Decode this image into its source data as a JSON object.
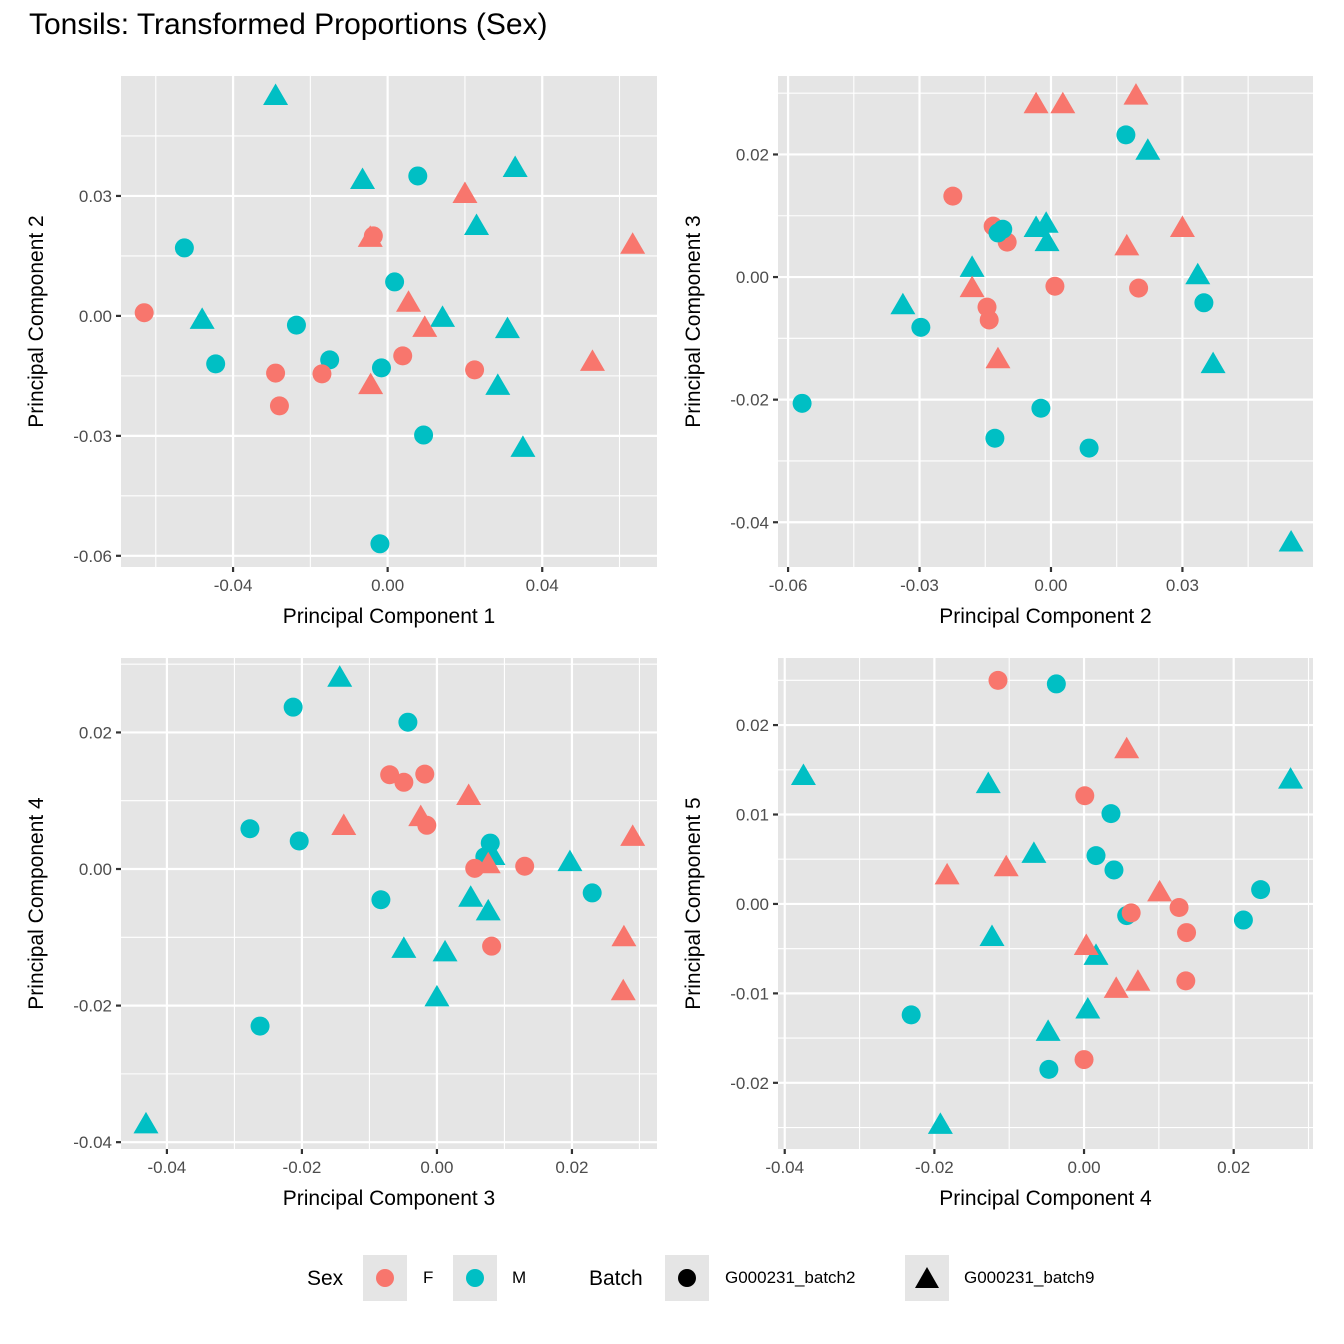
{
  "title": "Tonsils: Transformed Proportions (Sex)",
  "colors": {
    "F": "#F8766D",
    "M": "#00BFC4",
    "panel_bg": "#E5E5E5",
    "grid": "#FFFFFF"
  },
  "legend": {
    "sex_title": "Sex",
    "sex_items": [
      {
        "label": "F",
        "color": "#F8766D"
      },
      {
        "label": "M",
        "color": "#00BFC4"
      }
    ],
    "batch_title": "Batch",
    "batch_items": [
      {
        "label": "G000231_batch2",
        "shape": "circle"
      },
      {
        "label": "G000231_batch9",
        "shape": "triangle"
      }
    ]
  },
  "chart_data": [
    {
      "type": "scatter",
      "xlabel": "Principal Component 1",
      "ylabel": "Principal Component 2",
      "xlim": [
        -0.069,
        0.0697
      ],
      "ylim": [
        -0.0628,
        0.06
      ],
      "xticks": [
        -0.04,
        0.0,
        0.04
      ],
      "xtick_labels": [
        "-0.04",
        "0.00",
        "0.04"
      ],
      "xminor": [
        -0.06,
        -0.02,
        0.02,
        0.06
      ],
      "yticks": [
        0.03,
        0.0,
        -0.03,
        -0.06
      ],
      "ytick_labels": [
        "0.03",
        "0.00",
        "-0.03",
        "-0.06"
      ],
      "yminor": [
        0.045,
        0.015,
        -0.015,
        -0.045
      ],
      "grid": true,
      "points": [
        {
          "x": -0.029,
          "y": 0.055,
          "sex": "M",
          "batch": "G000231_batch9"
        },
        {
          "x": -0.0065,
          "y": 0.034,
          "sex": "M",
          "batch": "G000231_batch9"
        },
        {
          "x": 0.0078,
          "y": 0.035,
          "sex": "M",
          "batch": "G000231_batch2"
        },
        {
          "x": 0.033,
          "y": 0.037,
          "sex": "M",
          "batch": "G000231_batch9"
        },
        {
          "x": 0.02,
          "y": 0.0305,
          "sex": "F",
          "batch": "G000231_batch9"
        },
        {
          "x": 0.023,
          "y": 0.0225,
          "sex": "M",
          "batch": "G000231_batch9"
        },
        {
          "x": -0.0045,
          "y": 0.0195,
          "sex": "F",
          "batch": "G000231_batch9"
        },
        {
          "x": -0.0037,
          "y": 0.02,
          "sex": "F",
          "batch": "G000231_batch2"
        },
        {
          "x": -0.0526,
          "y": 0.017,
          "sex": "M",
          "batch": "G000231_batch2"
        },
        {
          "x": 0.0634,
          "y": 0.0178,
          "sex": "F",
          "batch": "G000231_batch9"
        },
        {
          "x": 0.0018,
          "y": 0.0085,
          "sex": "M",
          "batch": "G000231_batch2"
        },
        {
          "x": -0.063,
          "y": 0.0008,
          "sex": "F",
          "batch": "G000231_batch2"
        },
        {
          "x": -0.048,
          "y": -0.001,
          "sex": "M",
          "batch": "G000231_batch9"
        },
        {
          "x": -0.0236,
          "y": -0.0023,
          "sex": "M",
          "batch": "G000231_batch2"
        },
        {
          "x": 0.0054,
          "y": 0.0033,
          "sex": "F",
          "batch": "G000231_batch9"
        },
        {
          "x": 0.0142,
          "y": -0.0005,
          "sex": "M",
          "batch": "G000231_batch9"
        },
        {
          "x": 0.0096,
          "y": -0.003,
          "sex": "F",
          "batch": "G000231_batch9"
        },
        {
          "x": 0.031,
          "y": -0.0033,
          "sex": "M",
          "batch": "G000231_batch9"
        },
        {
          "x": -0.0445,
          "y": -0.012,
          "sex": "M",
          "batch": "G000231_batch2"
        },
        {
          "x": -0.015,
          "y": -0.011,
          "sex": "M",
          "batch": "G000231_batch2"
        },
        {
          "x": 0.0039,
          "y": -0.01,
          "sex": "F",
          "batch": "G000231_batch2"
        },
        {
          "x": -0.0016,
          "y": -0.013,
          "sex": "M",
          "batch": "G000231_batch2"
        },
        {
          "x": -0.029,
          "y": -0.0143,
          "sex": "F",
          "batch": "G000231_batch2"
        },
        {
          "x": -0.017,
          "y": -0.0145,
          "sex": "F",
          "batch": "G000231_batch2"
        },
        {
          "x": 0.0225,
          "y": -0.0135,
          "sex": "F",
          "batch": "G000231_batch2"
        },
        {
          "x": 0.053,
          "y": -0.0115,
          "sex": "F",
          "batch": "G000231_batch9"
        },
        {
          "x": -0.0044,
          "y": -0.0173,
          "sex": "F",
          "batch": "G000231_batch9"
        },
        {
          "x": 0.0285,
          "y": -0.0175,
          "sex": "M",
          "batch": "G000231_batch9"
        },
        {
          "x": -0.028,
          "y": -0.0225,
          "sex": "F",
          "batch": "G000231_batch2"
        },
        {
          "x": 0.0093,
          "y": -0.0298,
          "sex": "M",
          "batch": "G000231_batch2"
        },
        {
          "x": 0.035,
          "y": -0.033,
          "sex": "M",
          "batch": "G000231_batch9"
        },
        {
          "x": -0.002,
          "y": -0.057,
          "sex": "M",
          "batch": "G000231_batch2"
        }
      ]
    },
    {
      "type": "scatter",
      "xlabel": "Principal Component 2",
      "ylabel": "Principal Component 3",
      "xlim": [
        -0.0623,
        0.0598
      ],
      "ylim": [
        -0.0473,
        0.0328
      ],
      "xticks": [
        -0.06,
        -0.03,
        0.0,
        0.03
      ],
      "xtick_labels": [
        "-0.06",
        "-0.03",
        "0.00",
        "0.03"
      ],
      "xminor": [
        -0.045,
        -0.015,
        0.015,
        0.045
      ],
      "yticks": [
        0.02,
        0.0,
        -0.02,
        -0.04
      ],
      "ytick_labels": [
        "0.02",
        "0.00",
        "-0.02",
        "-0.04"
      ],
      "yminor": [
        0.03,
        0.01,
        -0.01,
        -0.03
      ],
      "grid": true,
      "points": [
        {
          "x": -0.0034,
          "y": 0.0282,
          "sex": "F",
          "batch": "G000231_batch9"
        },
        {
          "x": 0.0027,
          "y": 0.0282,
          "sex": "F",
          "batch": "G000231_batch9"
        },
        {
          "x": 0.0194,
          "y": 0.0296,
          "sex": "F",
          "batch": "G000231_batch9"
        },
        {
          "x": 0.0171,
          "y": 0.0232,
          "sex": "M",
          "batch": "G000231_batch2"
        },
        {
          "x": 0.0221,
          "y": 0.0206,
          "sex": "M",
          "batch": "G000231_batch9"
        },
        {
          "x": -0.0224,
          "y": 0.0132,
          "sex": "F",
          "batch": "G000231_batch2"
        },
        {
          "x": -0.0132,
          "y": 0.0083,
          "sex": "F",
          "batch": "G000231_batch2"
        },
        {
          "x": -0.01,
          "y": 0.0057,
          "sex": "F",
          "batch": "G000231_batch2"
        },
        {
          "x": -0.011,
          "y": 0.0078,
          "sex": "M",
          "batch": "G000231_batch2"
        },
        {
          "x": -0.0121,
          "y": 0.0072,
          "sex": "M",
          "batch": "G000231_batch2"
        },
        {
          "x": -0.0034,
          "y": 0.008,
          "sex": "M",
          "batch": "G000231_batch9"
        },
        {
          "x": -0.0011,
          "y": 0.0087,
          "sex": "M",
          "batch": "G000231_batch9"
        },
        {
          "x": -0.0009,
          "y": 0.0057,
          "sex": "M",
          "batch": "G000231_batch9"
        },
        {
          "x": 0.03,
          "y": 0.008,
          "sex": "F",
          "batch": "G000231_batch9"
        },
        {
          "x": 0.0173,
          "y": 0.005,
          "sex": "F",
          "batch": "G000231_batch9"
        },
        {
          "x": -0.018,
          "y": 0.0015,
          "sex": "M",
          "batch": "G000231_batch9"
        },
        {
          "x": -0.018,
          "y": -0.0018,
          "sex": "F",
          "batch": "G000231_batch9"
        },
        {
          "x": 0.0009,
          "y": -0.0015,
          "sex": "F",
          "batch": "G000231_batch2"
        },
        {
          "x": 0.02,
          "y": -0.0018,
          "sex": "F",
          "batch": "G000231_batch2"
        },
        {
          "x": 0.0335,
          "y": 0.0003,
          "sex": "M",
          "batch": "G000231_batch9"
        },
        {
          "x": 0.0349,
          "y": -0.0042,
          "sex": "M",
          "batch": "G000231_batch2"
        },
        {
          "x": -0.0338,
          "y": -0.0046,
          "sex": "M",
          "batch": "G000231_batch9"
        },
        {
          "x": -0.0297,
          "y": -0.0082,
          "sex": "M",
          "batch": "G000231_batch2"
        },
        {
          "x": -0.0146,
          "y": -0.0049,
          "sex": "F",
          "batch": "G000231_batch2"
        },
        {
          "x": -0.0141,
          "y": -0.007,
          "sex": "F",
          "batch": "G000231_batch2"
        },
        {
          "x": -0.0121,
          "y": -0.0134,
          "sex": "F",
          "batch": "G000231_batch9"
        },
        {
          "x": 0.037,
          "y": -0.0142,
          "sex": "M",
          "batch": "G000231_batch9"
        },
        {
          "x": -0.0568,
          "y": -0.0206,
          "sex": "M",
          "batch": "G000231_batch2"
        },
        {
          "x": -0.0023,
          "y": -0.0214,
          "sex": "M",
          "batch": "G000231_batch2"
        },
        {
          "x": -0.0128,
          "y": -0.0263,
          "sex": "M",
          "batch": "G000231_batch2"
        },
        {
          "x": 0.0087,
          "y": -0.0279,
          "sex": "M",
          "batch": "G000231_batch2"
        },
        {
          "x": 0.0548,
          "y": -0.0433,
          "sex": "M",
          "batch": "G000231_batch9"
        }
      ]
    },
    {
      "type": "scatter",
      "xlabel": "Principal Component 3",
      "ylabel": "Principal Component 4",
      "xlim": [
        -0.0468,
        0.0326
      ],
      "ylim": [
        -0.041,
        0.0309
      ],
      "xticks": [
        -0.04,
        -0.02,
        0.0,
        0.02
      ],
      "xtick_labels": [
        "-0.04",
        "-0.02",
        "0.00",
        "0.02"
      ],
      "xminor": [
        -0.03,
        -0.01,
        0.01,
        0.03
      ],
      "yticks": [
        0.02,
        0.0,
        -0.02,
        -0.04
      ],
      "ytick_labels": [
        "0.02",
        "0.00",
        "-0.02",
        "-0.04"
      ],
      "yminor": [
        0.03,
        0.01,
        -0.01,
        -0.03
      ],
      "grid": true,
      "points": [
        {
          "x": -0.0144,
          "y": 0.028,
          "sex": "M",
          "batch": "G000231_batch9"
        },
        {
          "x": -0.0213,
          "y": 0.0237,
          "sex": "M",
          "batch": "G000231_batch2"
        },
        {
          "x": -0.0043,
          "y": 0.0215,
          "sex": "M",
          "batch": "G000231_batch2"
        },
        {
          "x": -0.007,
          "y": 0.0138,
          "sex": "F",
          "batch": "G000231_batch2"
        },
        {
          "x": -0.0049,
          "y": 0.0127,
          "sex": "F",
          "batch": "G000231_batch2"
        },
        {
          "x": -0.0018,
          "y": 0.0139,
          "sex": "F",
          "batch": "G000231_batch2"
        },
        {
          "x": 0.0047,
          "y": 0.0107,
          "sex": "F",
          "batch": "G000231_batch9"
        },
        {
          "x": -0.0024,
          "y": 0.0076,
          "sex": "F",
          "batch": "G000231_batch9"
        },
        {
          "x": -0.0015,
          "y": 0.0064,
          "sex": "F",
          "batch": "G000231_batch2"
        },
        {
          "x": -0.0277,
          "y": 0.0059,
          "sex": "M",
          "batch": "G000231_batch2"
        },
        {
          "x": -0.0204,
          "y": 0.0041,
          "sex": "M",
          "batch": "G000231_batch2"
        },
        {
          "x": -0.0138,
          "y": 0.0063,
          "sex": "F",
          "batch": "G000231_batch9"
        },
        {
          "x": 0.0079,
          "y": 0.0038,
          "sex": "M",
          "batch": "G000231_batch2"
        },
        {
          "x": 0.0071,
          "y": 0.0018,
          "sex": "M",
          "batch": "G000231_batch2"
        },
        {
          "x": 0.0083,
          "y": 0.0019,
          "sex": "M",
          "batch": "G000231_batch9"
        },
        {
          "x": 0.0056,
          "y": 0.0001,
          "sex": "F",
          "batch": "G000231_batch2"
        },
        {
          "x": 0.0076,
          "y": 0.0007,
          "sex": "F",
          "batch": "G000231_batch9"
        },
        {
          "x": 0.013,
          "y": 0.0004,
          "sex": "F",
          "batch": "G000231_batch2"
        },
        {
          "x": 0.0197,
          "y": 0.001,
          "sex": "M",
          "batch": "G000231_batch9"
        },
        {
          "x": 0.029,
          "y": 0.0047,
          "sex": "F",
          "batch": "G000231_batch9"
        },
        {
          "x": 0.023,
          "y": -0.0035,
          "sex": "M",
          "batch": "G000231_batch2"
        },
        {
          "x": -0.0083,
          "y": -0.0045,
          "sex": "M",
          "batch": "G000231_batch2"
        },
        {
          "x": 0.005,
          "y": -0.0042,
          "sex": "M",
          "batch": "G000231_batch9"
        },
        {
          "x": 0.0076,
          "y": -0.0062,
          "sex": "M",
          "batch": "G000231_batch9"
        },
        {
          "x": -0.0049,
          "y": -0.0117,
          "sex": "M",
          "batch": "G000231_batch9"
        },
        {
          "x": 0.0012,
          "y": -0.0122,
          "sex": "M",
          "batch": "G000231_batch9"
        },
        {
          "x": 0.0081,
          "y": -0.0113,
          "sex": "F",
          "batch": "G000231_batch2"
        },
        {
          "x": 0.0277,
          "y": -0.01,
          "sex": "F",
          "batch": "G000231_batch9"
        },
        {
          "x": 0.0276,
          "y": -0.0179,
          "sex": "F",
          "batch": "G000231_batch9"
        },
        {
          "x": 0.0,
          "y": -0.0188,
          "sex": "M",
          "batch": "G000231_batch9"
        },
        {
          "x": -0.0262,
          "y": -0.023,
          "sex": "M",
          "batch": "G000231_batch2"
        },
        {
          "x": -0.0431,
          "y": -0.0374,
          "sex": "M",
          "batch": "G000231_batch9"
        }
      ]
    },
    {
      "type": "scatter",
      "xlabel": "Principal Component 4",
      "ylabel": "Principal Component 5",
      "xlim": [
        -0.0409,
        0.0306
      ],
      "ylim": [
        -0.0274,
        0.0275
      ],
      "xticks": [
        -0.04,
        -0.02,
        0.0,
        0.02
      ],
      "xtick_labels": [
        "-0.04",
        "-0.02",
        "0.00",
        "0.02"
      ],
      "xminor": [
        -0.03,
        -0.01,
        0.01,
        0.03
      ],
      "yticks": [
        0.02,
        0.01,
        0.0,
        -0.01,
        -0.02
      ],
      "ytick_labels": [
        "0.02",
        "0.01",
        "0.00",
        "-0.01",
        "-0.02"
      ],
      "yminor": [
        0.025,
        0.015,
        0.005,
        -0.005,
        -0.015,
        -0.025
      ],
      "grid": true,
      "points": [
        {
          "x": -0.0115,
          "y": 0.025,
          "sex": "F",
          "batch": "G000231_batch2"
        },
        {
          "x": -0.0037,
          "y": 0.0246,
          "sex": "M",
          "batch": "G000231_batch2"
        },
        {
          "x": 0.0057,
          "y": 0.0173,
          "sex": "F",
          "batch": "G000231_batch9"
        },
        {
          "x": -0.0375,
          "y": 0.0143,
          "sex": "M",
          "batch": "G000231_batch9"
        },
        {
          "x": -0.0128,
          "y": 0.0134,
          "sex": "M",
          "batch": "G000231_batch9"
        },
        {
          "x": 0.0276,
          "y": 0.0139,
          "sex": "M",
          "batch": "G000231_batch9"
        },
        {
          "x": 0.0001,
          "y": 0.0121,
          "sex": "F",
          "batch": "G000231_batch2"
        },
        {
          "x": 0.0036,
          "y": 0.0101,
          "sex": "M",
          "batch": "G000231_batch2"
        },
        {
          "x": -0.0067,
          "y": 0.0056,
          "sex": "M",
          "batch": "G000231_batch9"
        },
        {
          "x": 0.0016,
          "y": 0.0054,
          "sex": "M",
          "batch": "G000231_batch2"
        },
        {
          "x": 0.004,
          "y": 0.0038,
          "sex": "M",
          "batch": "G000231_batch2"
        },
        {
          "x": -0.0183,
          "y": 0.0032,
          "sex": "F",
          "batch": "G000231_batch9"
        },
        {
          "x": -0.0104,
          "y": 0.0041,
          "sex": "F",
          "batch": "G000231_batch9"
        },
        {
          "x": 0.0101,
          "y": 0.0013,
          "sex": "F",
          "batch": "G000231_batch9"
        },
        {
          "x": 0.0236,
          "y": 0.0016,
          "sex": "M",
          "batch": "G000231_batch2"
        },
        {
          "x": 0.0127,
          "y": -0.0004,
          "sex": "F",
          "batch": "G000231_batch2"
        },
        {
          "x": 0.0057,
          "y": -0.0013,
          "sex": "M",
          "batch": "G000231_batch2"
        },
        {
          "x": 0.0063,
          "y": -0.001,
          "sex": "F",
          "batch": "G000231_batch2"
        },
        {
          "x": 0.0213,
          "y": -0.0018,
          "sex": "M",
          "batch": "G000231_batch2"
        },
        {
          "x": 0.0137,
          "y": -0.0032,
          "sex": "F",
          "batch": "G000231_batch2"
        },
        {
          "x": -0.0123,
          "y": -0.0037,
          "sex": "M",
          "batch": "G000231_batch9"
        },
        {
          "x": 0.0016,
          "y": -0.0058,
          "sex": "M",
          "batch": "G000231_batch9"
        },
        {
          "x": 0.0003,
          "y": -0.0047,
          "sex": "F",
          "batch": "G000231_batch9"
        },
        {
          "x": 0.0136,
          "y": -0.0086,
          "sex": "F",
          "batch": "G000231_batch2"
        },
        {
          "x": 0.0043,
          "y": -0.0095,
          "sex": "F",
          "batch": "G000231_batch9"
        },
        {
          "x": 0.0072,
          "y": -0.0087,
          "sex": "F",
          "batch": "G000231_batch9"
        },
        {
          "x": 0.0005,
          "y": -0.0118,
          "sex": "M",
          "batch": "G000231_batch9"
        },
        {
          "x": -0.0231,
          "y": -0.0124,
          "sex": "M",
          "batch": "G000231_batch2"
        },
        {
          "x": -0.0048,
          "y": -0.0143,
          "sex": "M",
          "batch": "G000231_batch9"
        },
        {
          "x": 0.0,
          "y": -0.0174,
          "sex": "F",
          "batch": "G000231_batch2"
        },
        {
          "x": -0.0047,
          "y": -0.0185,
          "sex": "M",
          "batch": "G000231_batch2"
        },
        {
          "x": -0.0192,
          "y": -0.0247,
          "sex": "M",
          "batch": "G000231_batch9"
        }
      ]
    }
  ]
}
